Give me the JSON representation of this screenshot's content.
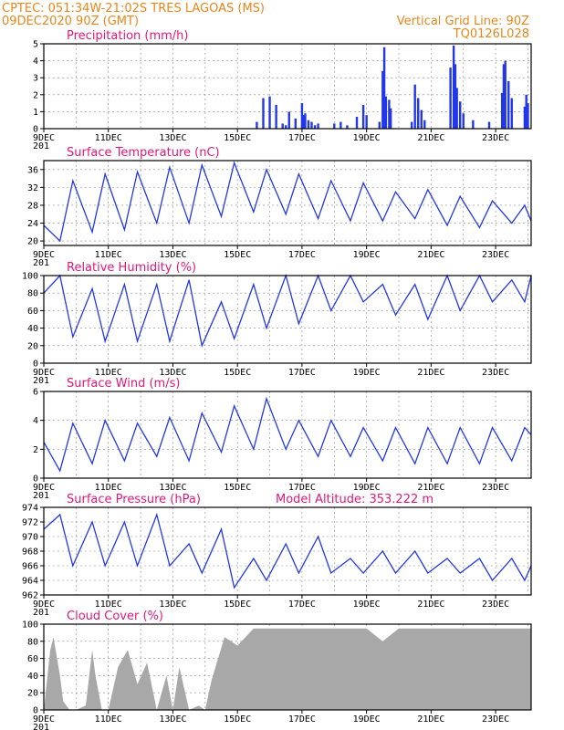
{
  "header": {
    "line1": "CPTEC:  051:34W-21:02S  TRES LAGOAS (MS)",
    "line2": "09DEC2020 90Z (GMT)",
    "grid_note": "Vertical Grid Line: 90Z",
    "model_id": "TQ0126L028"
  },
  "colors": {
    "header": "#e8861a",
    "title": "#e0187a",
    "series": "#2238e8",
    "cloud": "#a8a8a8"
  },
  "x_labels": [
    "9DEC",
    "11DEC",
    "13DEC",
    "15DEC",
    "17DEC",
    "19DEC",
    "21DEC",
    "23DEC"
  ],
  "x_label_days": [
    9,
    11,
    13,
    15,
    17,
    19,
    21,
    23
  ],
  "x_range_days": [
    9,
    24.1
  ],
  "extra_tick": "201",
  "chart_data": [
    {
      "type": "bar",
      "title": "Precipitation  (mm/h)",
      "ylim": [
        0,
        5
      ],
      "yticks": [
        "0",
        "1",
        "2",
        "3",
        "4",
        "5"
      ],
      "series": [
        {
          "x": [
            15.6,
            15.8,
            16.0,
            16.2,
            16.4,
            16.5,
            16.6,
            16.8,
            17.0,
            17.05,
            17.1,
            17.2,
            17.3,
            17.4,
            17.5,
            18.0,
            18.2,
            18.4,
            18.7,
            18.9,
            19.0,
            19.4,
            19.5,
            19.55,
            19.6,
            19.7,
            19.75,
            20.4,
            20.5,
            20.6,
            20.7,
            20.8,
            21.6,
            21.7,
            21.75,
            21.8,
            21.9,
            22.0,
            22.3,
            22.8,
            23.2,
            23.25,
            23.3,
            23.4,
            23.5,
            23.9,
            23.95,
            24.0
          ],
          "y": [
            0.4,
            1.8,
            1.9,
            1.4,
            0.3,
            0.2,
            1.0,
            0.6,
            1.5,
            0.8,
            0.9,
            0.5,
            0.4,
            0.2,
            0.3,
            0.3,
            0.4,
            0.2,
            0.7,
            1.4,
            0.8,
            0.4,
            3.4,
            4.8,
            1.9,
            1.7,
            1.2,
            0.4,
            2.6,
            1.8,
            1.1,
            0.5,
            3.6,
            4.9,
            3.8,
            2.4,
            1.6,
            0.9,
            0.5,
            0.4,
            2.1,
            3.8,
            4.0,
            2.8,
            1.8,
            1.3,
            2.0,
            1.5
          ]
        }
      ]
    },
    {
      "type": "line",
      "title": "Surface Temperature  (nC)",
      "ylim": [
        19,
        38
      ],
      "yticks": [
        "20",
        "24",
        "28",
        "32",
        "36"
      ],
      "series": [
        {
          "x": [
            9.0,
            9.5,
            9.9,
            10.5,
            10.9,
            11.5,
            11.9,
            12.5,
            12.9,
            13.5,
            13.9,
            14.5,
            14.9,
            15.5,
            15.9,
            16.5,
            16.9,
            17.5,
            17.9,
            18.5,
            18.9,
            19.5,
            19.9,
            20.5,
            20.9,
            21.5,
            21.9,
            22.5,
            22.9,
            23.5,
            23.9,
            24.1
          ],
          "y": [
            23.5,
            20.0,
            33.5,
            22.0,
            35.0,
            22.5,
            35.5,
            24.0,
            36.5,
            24.0,
            37.0,
            25.5,
            37.5,
            26.5,
            36.0,
            26.0,
            35.0,
            25.0,
            33.5,
            24.5,
            33.0,
            24.5,
            31.0,
            25.0,
            31.5,
            23.5,
            30.0,
            23.0,
            29.0,
            24.0,
            28.0,
            24.5
          ]
        }
      ]
    },
    {
      "type": "line",
      "title": "Relative Humidity  (%)",
      "ylim": [
        0,
        100
      ],
      "yticks": [
        "0",
        "20",
        "40",
        "60",
        "80",
        "100"
      ],
      "series": [
        {
          "x": [
            9.0,
            9.5,
            9.9,
            10.5,
            10.9,
            11.5,
            11.9,
            12.5,
            12.9,
            13.5,
            13.9,
            14.5,
            14.9,
            15.5,
            15.9,
            16.5,
            16.9,
            17.5,
            17.9,
            18.5,
            18.9,
            19.5,
            19.9,
            20.5,
            20.9,
            21.5,
            21.9,
            22.5,
            22.9,
            23.5,
            23.9,
            24.1
          ],
          "y": [
            80,
            100,
            30,
            85,
            25,
            90,
            25,
            90,
            25,
            95,
            20,
            70,
            28,
            90,
            40,
            100,
            45,
            100,
            60,
            100,
            70,
            90,
            55,
            90,
            50,
            100,
            60,
            100,
            70,
            95,
            70,
            100
          ]
        }
      ]
    },
    {
      "type": "line",
      "title": "Surface Wind  (m/s)",
      "ylim": [
        0,
        6
      ],
      "yticks": [
        "0",
        "2",
        "4",
        "6"
      ],
      "series": [
        {
          "x": [
            9.0,
            9.5,
            9.9,
            10.5,
            10.9,
            11.5,
            11.9,
            12.5,
            12.9,
            13.5,
            13.9,
            14.5,
            14.9,
            15.5,
            15.9,
            16.5,
            16.9,
            17.5,
            17.9,
            18.5,
            18.9,
            19.5,
            19.9,
            20.5,
            20.9,
            21.5,
            21.9,
            22.5,
            22.9,
            23.5,
            23.9,
            24.1
          ],
          "y": [
            2.5,
            0.5,
            3.8,
            1.0,
            4.0,
            1.2,
            3.8,
            1.5,
            4.2,
            1.2,
            4.5,
            1.8,
            5.0,
            2.0,
            5.5,
            2.0,
            4.0,
            1.5,
            4.0,
            1.5,
            3.5,
            1.2,
            3.5,
            1.0,
            3.5,
            1.0,
            3.5,
            1.0,
            3.5,
            1.2,
            3.5,
            3.0
          ]
        }
      ]
    },
    {
      "type": "line",
      "title": "Surface Pressure  (hPa)",
      "note": "Model Altitude: 353.222  m",
      "ylim": [
        962,
        974
      ],
      "yticks": [
        "962",
        "964",
        "966",
        "968",
        "970",
        "972",
        "974"
      ],
      "series": [
        {
          "x": [
            9.0,
            9.5,
            9.9,
            10.5,
            10.9,
            11.5,
            11.9,
            12.5,
            12.9,
            13.5,
            13.9,
            14.5,
            14.9,
            15.5,
            15.9,
            16.5,
            16.9,
            17.5,
            17.9,
            18.5,
            18.9,
            19.5,
            19.9,
            20.5,
            20.9,
            21.5,
            21.9,
            22.5,
            22.9,
            23.5,
            23.9,
            24.1
          ],
          "y": [
            971,
            973,
            966,
            972,
            966,
            972,
            966,
            973,
            966,
            969,
            965,
            971,
            963,
            967,
            964,
            969,
            965,
            970,
            965,
            967,
            965,
            968,
            965,
            968,
            965,
            967,
            965,
            967,
            964,
            967,
            964,
            966
          ]
        }
      ]
    },
    {
      "type": "area",
      "title": "Cloud Cover  (%)",
      "ylim": [
        0,
        100
      ],
      "yticks": [
        "0",
        "20",
        "40",
        "60",
        "80",
        "100"
      ],
      "series": [
        {
          "x": [
            9.0,
            9.2,
            9.3,
            9.5,
            9.6,
            9.8,
            10.0,
            10.3,
            10.5,
            10.6,
            10.8,
            11.0,
            11.3,
            11.6,
            11.9,
            12.2,
            12.5,
            12.8,
            13.0,
            13.2,
            13.5,
            13.8,
            14.0,
            14.2,
            14.4,
            14.6,
            14.8,
            15.0,
            15.5,
            16.0,
            16.5,
            17.0,
            17.5,
            18.0,
            18.5,
            19.0,
            19.5,
            20.0,
            20.5,
            21.0,
            21.5,
            22.0,
            22.5,
            23.0,
            23.5,
            24.0,
            24.1
          ],
          "y": [
            0,
            70,
            85,
            40,
            10,
            0,
            0,
            5,
            70,
            40,
            0,
            0,
            50,
            70,
            30,
            55,
            0,
            40,
            0,
            50,
            0,
            5,
            0,
            35,
            60,
            85,
            80,
            75,
            95,
            95,
            95,
            95,
            95,
            95,
            95,
            95,
            80,
            95,
            95,
            95,
            95,
            95,
            95,
            95,
            95,
            95,
            95
          ]
        }
      ]
    }
  ]
}
